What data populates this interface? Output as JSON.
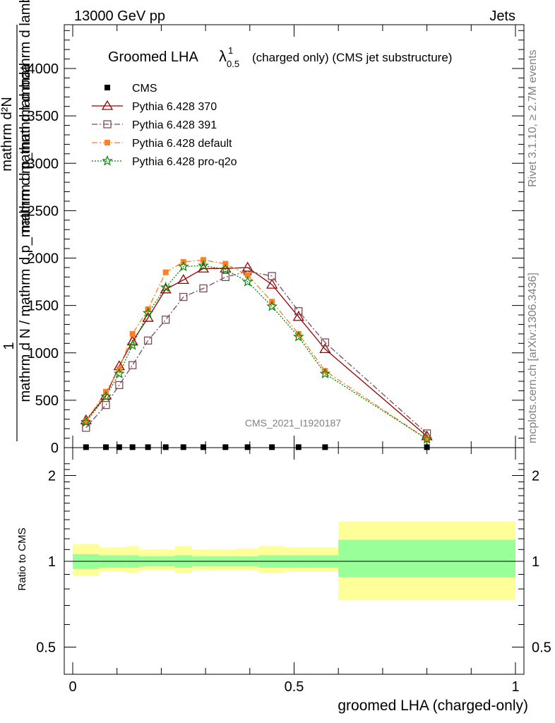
{
  "header": {
    "left": "13000 GeV pp",
    "right": "Jets"
  },
  "side": {
    "top": "Rivet 3.1.10, ≥ 2.7M events",
    "bottom": "mcplots.cern.ch [arXiv:1306.3436]"
  },
  "watermark": "CMS_2021_I1920187",
  "title": {
    "main": "Groomed LHA",
    "lambda": "λ",
    "sup": "1",
    "sub": "0.5",
    "rest": "(charged only) (CMS jet substructure)"
  },
  "ylabel": {
    "numerator": "1",
    "denominator": "mathrm d N / mathrm d p_mathrm d mathrm d lambda",
    "overlay": "mathrm d²N",
    "overlay2": "mathrm d p_mathrm d mathrm d lambda"
  },
  "xlabel": "groomed LHA (charged-only)",
  "ratio_ylabel": "Ratio to CMS",
  "chart_data": {
    "type": "line",
    "main": {
      "ylim": [
        0,
        4500
      ],
      "xlim": [
        -0.02,
        1.0
      ],
      "yticks": [
        0,
        500,
        1000,
        1500,
        2000,
        2500,
        3000,
        3500,
        4000
      ],
      "yticklabels": [
        "0",
        "500",
        "1000",
        "1500",
        "2000",
        "2500",
        "3000",
        "3500",
        "4000"
      ],
      "x": [
        0.03,
        0.075,
        0.105,
        0.135,
        0.17,
        0.21,
        0.25,
        0.295,
        0.345,
        0.395,
        0.45,
        0.51,
        0.57,
        0.8
      ],
      "series": [
        {
          "name": "CMS",
          "color": "#000000",
          "marker": "square",
          "line": "none",
          "values": [
            5,
            5,
            5,
            5,
            5,
            5,
            5,
            5,
            5,
            5,
            5,
            5,
            5,
            5
          ]
        },
        {
          "name": "Pythia 6.428 370",
          "color": "#990000",
          "marker": "triangle",
          "line": "solid",
          "values": [
            290,
            550,
            860,
            1120,
            1370,
            1670,
            1770,
            1890,
            1890,
            1900,
            1720,
            1380,
            1040,
            120
          ]
        },
        {
          "name": "Pythia 6.428 391",
          "color": "#7a4b57",
          "marker": "open-square",
          "line": "dashdot",
          "values": [
            210,
            450,
            660,
            870,
            1130,
            1350,
            1590,
            1680,
            1800,
            1860,
            1810,
            1440,
            1110,
            150
          ]
        },
        {
          "name": "Pythia 6.428 default",
          "color": "#ff7f24",
          "marker": "filled-square",
          "line": "dashdot",
          "values": [
            280,
            590,
            830,
            1200,
            1460,
            1850,
            1960,
            1980,
            1940,
            1820,
            1540,
            1200,
            810,
            90
          ]
        },
        {
          "name": "Pythia 6.428 pro-q2o",
          "color": "#008800",
          "marker": "star",
          "line": "dotted",
          "values": [
            270,
            540,
            780,
            1080,
            1420,
            1690,
            1910,
            1920,
            1880,
            1750,
            1490,
            1170,
            780,
            90
          ]
        }
      ]
    },
    "ratio": {
      "ylim": [
        0.4,
        2.4
      ],
      "yticks": [
        0.5,
        1,
        2
      ],
      "yticklabels": [
        "0.5",
        "1",
        "2"
      ],
      "xticks": [
        0,
        0.5,
        1
      ],
      "xticklabels": [
        "0",
        "0.5",
        "1"
      ],
      "bins": [
        0,
        0.06,
        0.09,
        0.12,
        0.15,
        0.19,
        0.23,
        0.27,
        0.32,
        0.37,
        0.42,
        0.48,
        0.54,
        0.6,
        1.0
      ],
      "band_green": [
        [
          0.94,
          1.06
        ],
        [
          0.95,
          1.05
        ],
        [
          0.95,
          1.05
        ],
        [
          0.95,
          1.05
        ],
        [
          0.96,
          1.04
        ],
        [
          0.96,
          1.04
        ],
        [
          0.95,
          1.05
        ],
        [
          0.96,
          1.04
        ],
        [
          0.96,
          1.04
        ],
        [
          0.96,
          1.04
        ],
        [
          0.95,
          1.05
        ],
        [
          0.95,
          1.05
        ],
        [
          0.95,
          1.05
        ],
        [
          0.88,
          1.19
        ]
      ],
      "band_yellow": [
        [
          0.89,
          1.15
        ],
        [
          0.92,
          1.12
        ],
        [
          0.92,
          1.12
        ],
        [
          0.91,
          1.13
        ],
        [
          0.93,
          1.1
        ],
        [
          0.93,
          1.1
        ],
        [
          0.91,
          1.13
        ],
        [
          0.93,
          1.1
        ],
        [
          0.93,
          1.1
        ],
        [
          0.93,
          1.11
        ],
        [
          0.91,
          1.13
        ],
        [
          0.92,
          1.12
        ],
        [
          0.92,
          1.12
        ],
        [
          0.73,
          1.38
        ]
      ],
      "green_color": "#99ff99",
      "yellow_color": "#ffff99"
    }
  }
}
